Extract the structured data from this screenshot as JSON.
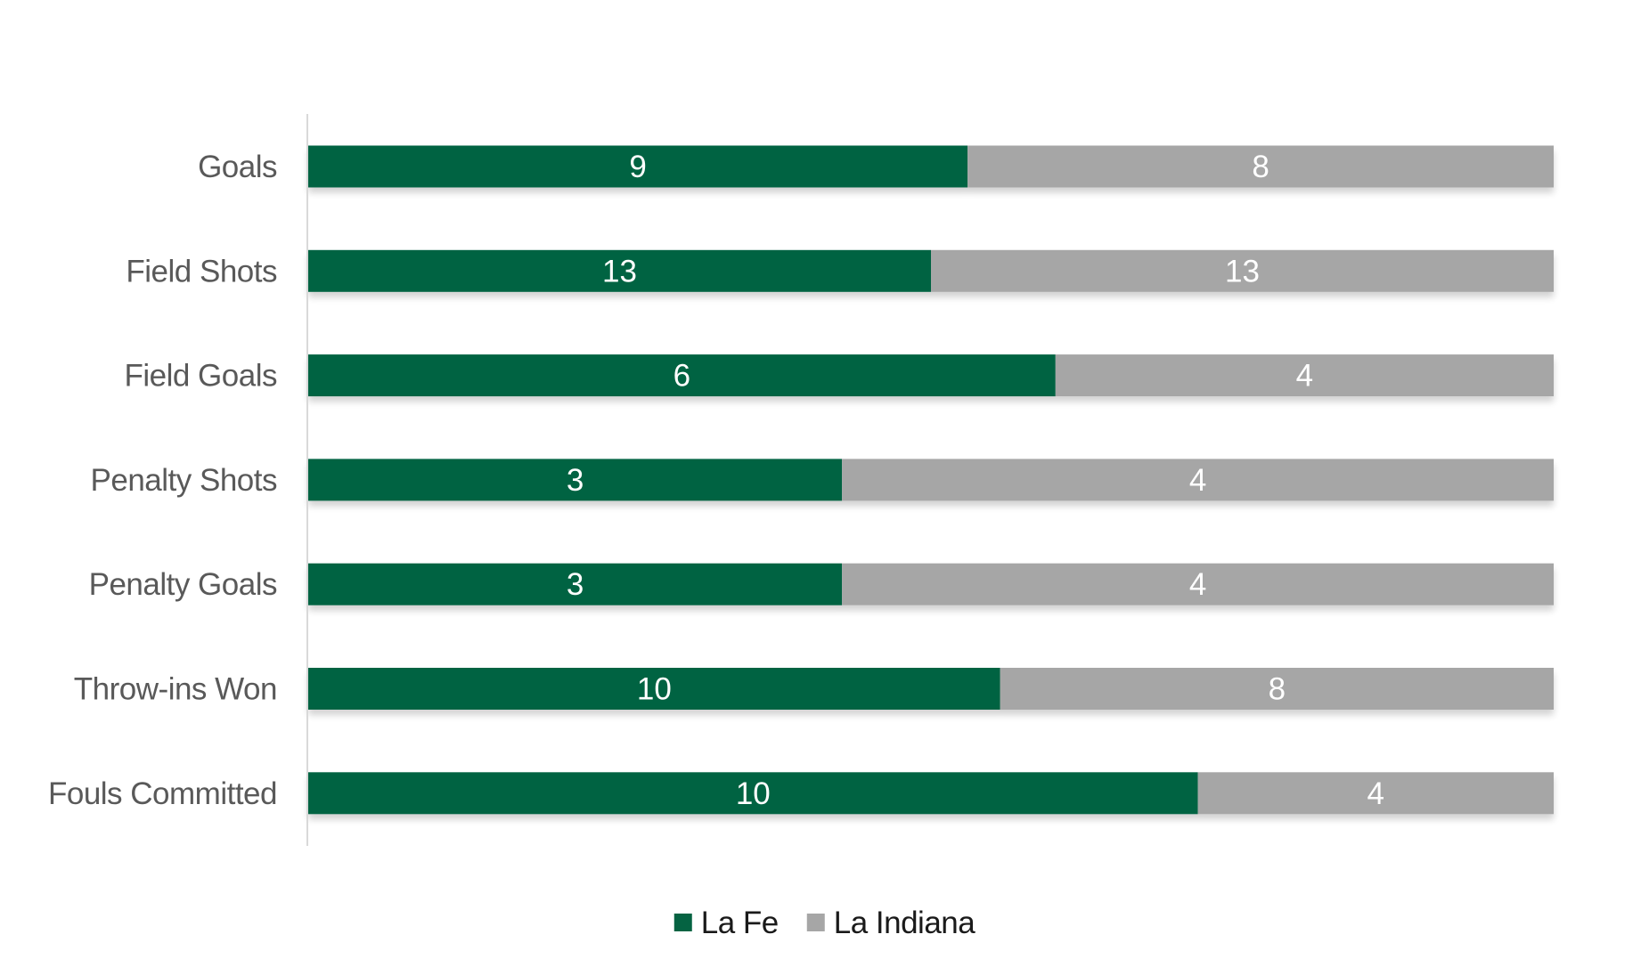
{
  "chart_data": {
    "type": "bar",
    "orientation": "horizontal",
    "stacking": "percent",
    "categories": [
      "Goals",
      "Field Shots",
      "Field Goals",
      "Penalty Shots",
      "Penalty Goals",
      "Throw-ins Won",
      "Fouls Committed"
    ],
    "series": [
      {
        "name": "La Fe",
        "values": [
          9,
          13,
          6,
          3,
          3,
          10,
          10
        ],
        "color": "#056342"
      },
      {
        "name": "La Indiana",
        "values": [
          8,
          13,
          4,
          4,
          4,
          8,
          4
        ],
        "color": "#a6a6a6"
      }
    ],
    "data_labels": true,
    "legend": {
      "position": "bottom"
    },
    "grid": false,
    "colors": {
      "category_label": "#595959",
      "data_label": "#ffffff",
      "legend_text": "#1a1a1a",
      "axis_line": "#d9d9d9"
    }
  }
}
